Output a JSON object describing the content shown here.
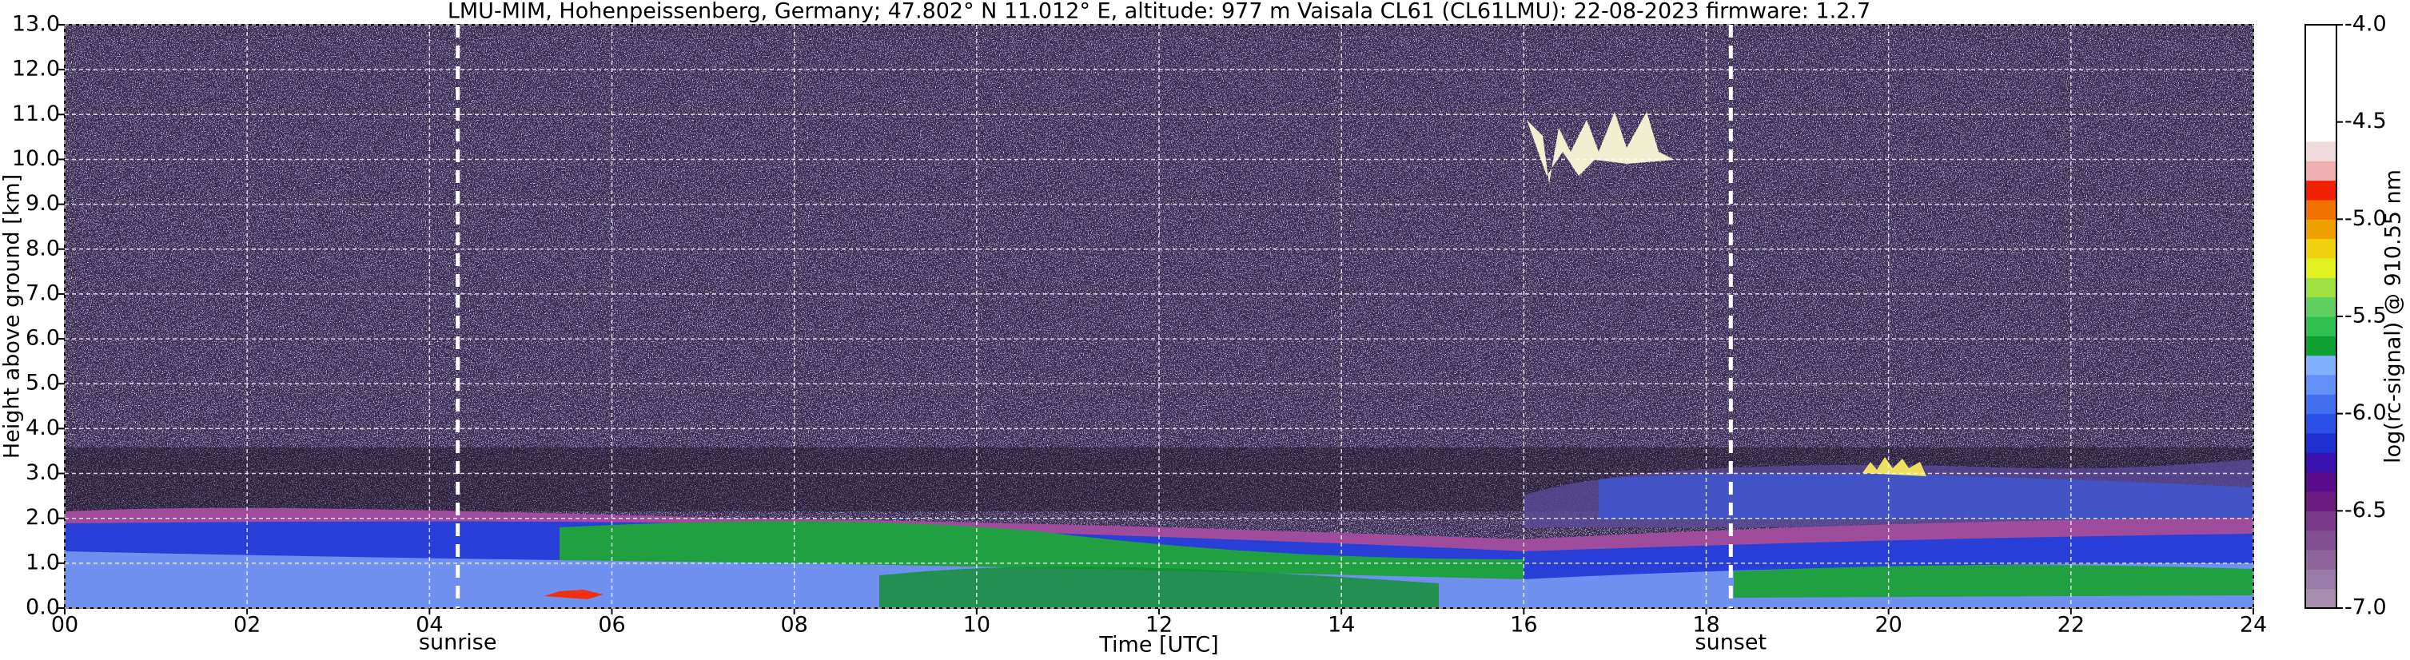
{
  "chart_data": {
    "type": "heatmap",
    "title": "LMU-MIM, Hohenpeissenberg, Germany; 47.802° N 11.012° E, altitude: 977 m    Vaisala CL61 (CL61LMU): 22-08-2023    firmware: 1.2.7",
    "xlabel": "Time [UTC]",
    "ylabel": "Height above ground [km]",
    "xlim": [
      0,
      24
    ],
    "xticks": [
      {
        "value": 0,
        "label": "00"
      },
      {
        "value": 2,
        "label": "02"
      },
      {
        "value": 4,
        "label": "04"
      },
      {
        "value": 6,
        "label": "06"
      },
      {
        "value": 8,
        "label": "08"
      },
      10,
      12,
      14,
      16,
      18,
      20,
      22,
      24
    ],
    "ylim": [
      0,
      13
    ],
    "yticks": [
      {
        "value": 0,
        "label": "0.0"
      },
      {
        "value": 1,
        "label": "1.0"
      },
      {
        "value": 2,
        "label": "2.0"
      },
      {
        "value": 3,
        "label": "3.0"
      },
      {
        "value": 4,
        "label": "4.0"
      },
      {
        "value": 5,
        "label": "5.0"
      },
      {
        "value": 6,
        "label": "6.0"
      },
      {
        "value": 7,
        "label": "7.0"
      },
      {
        "value": 8,
        "label": "8.0"
      },
      {
        "value": 9,
        "label": "9.0"
      },
      {
        "value": 10,
        "label": "10.0"
      },
      {
        "value": 11,
        "label": "11.0"
      },
      {
        "value": 12,
        "label": "12.0"
      },
      {
        "value": 13,
        "label": "13.0"
      }
    ],
    "grid": true,
    "annotations": [
      {
        "label": "sunrise",
        "x": 4.31
      },
      {
        "label": "sunset",
        "x": 18.27
      }
    ],
    "colorbar_label": "log(rc-signal) @ 910.55 nm",
    "clim": [
      -7,
      -4
    ],
    "cticks": [
      {
        "value": -7,
        "label": "-7.0"
      },
      -6.5,
      {
        "value": -6,
        "label": "-6.0"
      },
      -5.5,
      {
        "value": -5,
        "label": "-5.0"
      },
      -4.5,
      {
        "value": -4,
        "label": "-4.0"
      }
    ],
    "colorbar_colors": [
      "#a88fb0",
      "#9a7aa6",
      "#8e669c",
      "#824f92",
      "#7a3888",
      "#6c1c80",
      "#5a0c8c",
      "#3a10b0",
      "#2030d0",
      "#2a50e8",
      "#4070f0",
      "#6090f8",
      "#80b0ff",
      "#10a030",
      "#30c050",
      "#60d060",
      "#a0e040",
      "#e0f020",
      "#f0d010",
      "#f0a000",
      "#f07000",
      "#f02000",
      "#f0b0b0",
      "#f0dada",
      "#ffffff",
      "#ffffff",
      "#ffffff",
      "#ffffff",
      "#ffffff",
      "#ffffff"
    ]
  }
}
